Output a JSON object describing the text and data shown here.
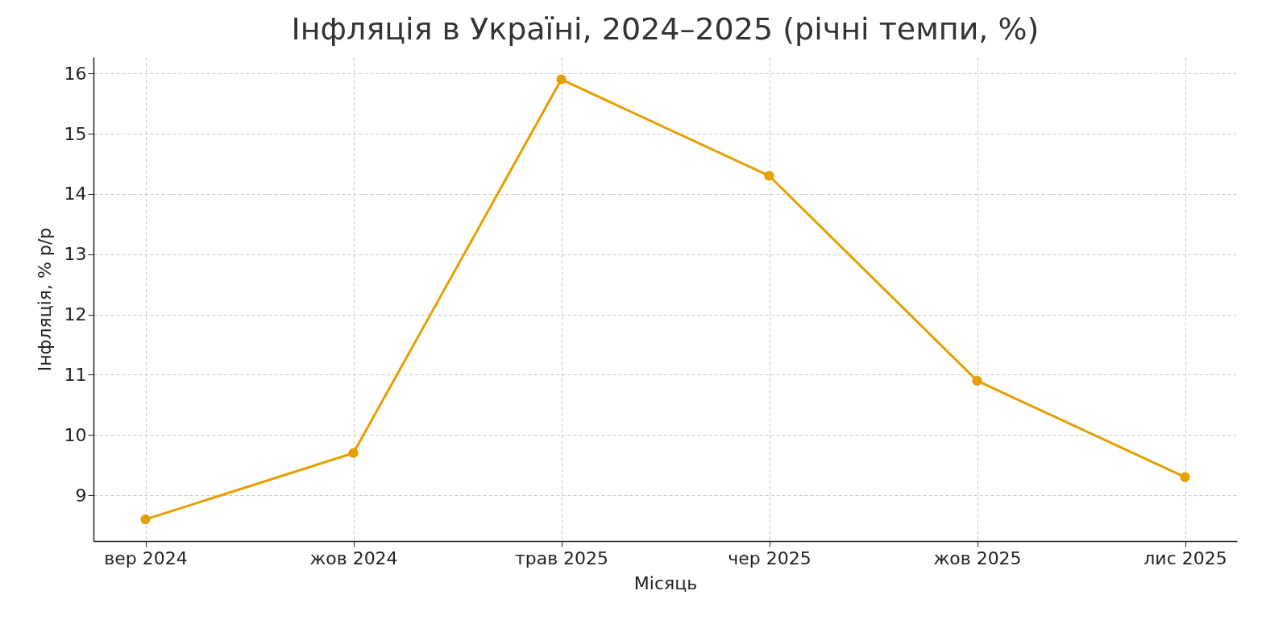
{
  "chart_data": {
    "type": "line",
    "title": "Інфляція в Україні, 2024–2025 (річні темпи, %)",
    "xlabel": "Місяць",
    "ylabel": "Інфляція, % р/р",
    "categories": [
      "вер 2024",
      "жов 2024",
      "трав 2025",
      "чер 2025",
      "жов 2025",
      "лис 2025"
    ],
    "series": [
      {
        "color": "#e69f00",
        "values": [
          8.6,
          9.7,
          15.9,
          14.3,
          10.9,
          9.3
        ]
      }
    ],
    "ylim": [
      8.24,
      16.27
    ],
    "yticks": [
      9,
      10,
      11,
      12,
      13,
      14,
      15,
      16
    ],
    "grid": true,
    "marker": "circle",
    "line_style": "solid"
  }
}
